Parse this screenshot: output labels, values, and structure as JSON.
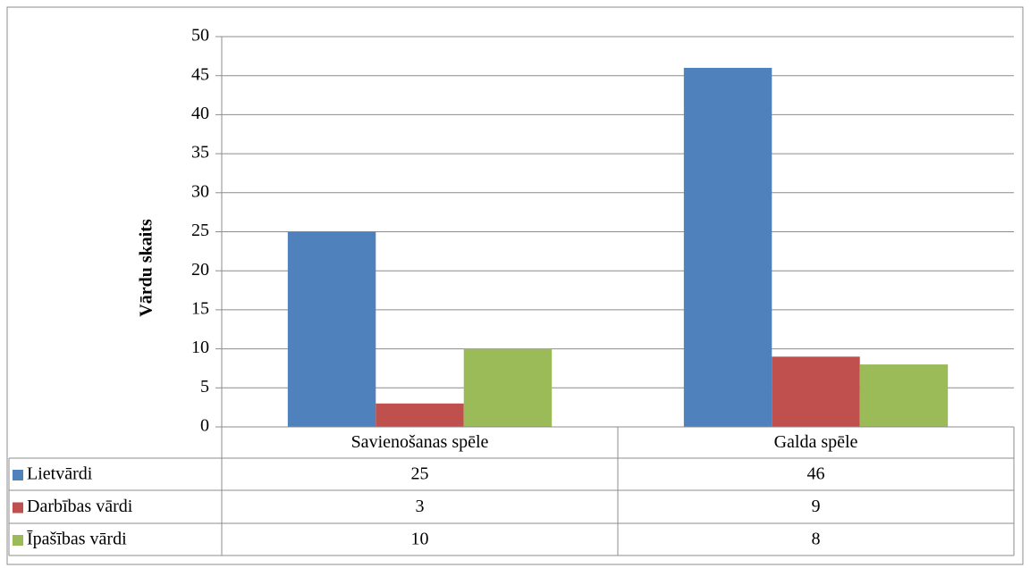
{
  "chart_data": {
    "type": "bar",
    "y_label": "Vārdu skaits",
    "categories": [
      "Savienošanas spēle",
      "Galda spēle"
    ],
    "series": [
      {
        "name": "Lietvārdi",
        "color": "#4f81bd",
        "values": [
          25,
          46
        ]
      },
      {
        "name": "Darbības vārdi",
        "color": "#c0504d",
        "values": [
          3,
          9
        ]
      },
      {
        "name": "Īpašības vārdi",
        "color": "#9bbb59",
        "values": [
          10,
          8
        ]
      }
    ],
    "ylim": [
      0,
      50
    ],
    "yticks": [
      0,
      5,
      10,
      15,
      20,
      25,
      30,
      35,
      40,
      45,
      50
    ],
    "grid": true,
    "data_table": true
  }
}
